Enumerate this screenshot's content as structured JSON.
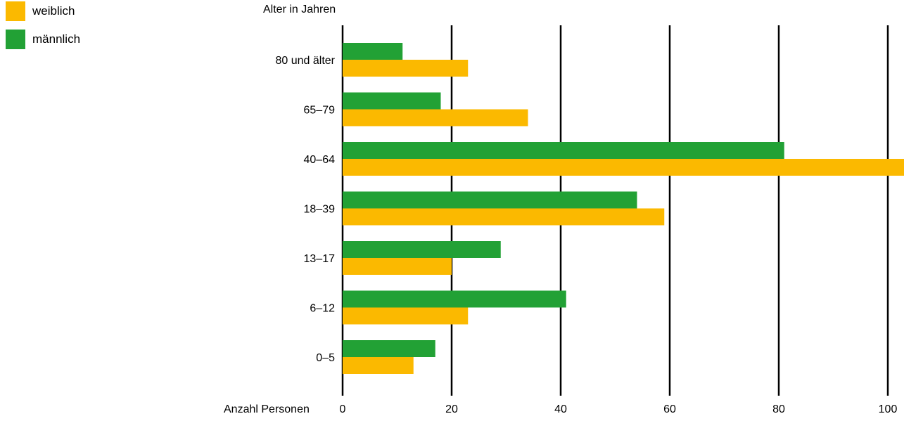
{
  "chart_data": {
    "type": "bar",
    "orientation": "horizontal",
    "ylabel": "Alter in Jahren",
    "xlabel": "Anzahl Personen",
    "categories": [
      "80 und älter",
      "65–79",
      "40–64",
      "18–39",
      "13–17",
      "6–12",
      "0–5"
    ],
    "series": [
      {
        "name": "männlich",
        "color": "#22a135",
        "values": [
          11,
          18,
          81,
          54,
          29,
          41,
          17
        ]
      },
      {
        "name": "weiblich",
        "color": "#fbb900",
        "values": [
          23,
          34,
          104,
          59,
          20,
          23,
          13
        ]
      }
    ],
    "xticks": [
      "0",
      "20",
      "40",
      "60",
      "80",
      "100"
    ],
    "xlim": [
      0,
      100
    ],
    "grid": "vertical",
    "legend_position": "top-left"
  },
  "legend": [
    {
      "label": "weiblich",
      "color": "#fbb900"
    },
    {
      "label": "männlich",
      "color": "#22a135"
    }
  ]
}
